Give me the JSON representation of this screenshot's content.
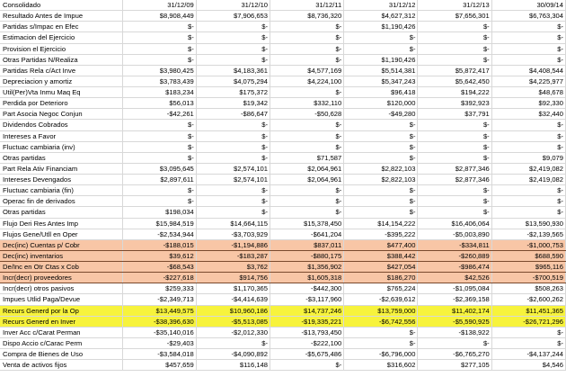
{
  "sheet": {
    "header": [
      "Consolidado",
      "31/12/09",
      "31/12/10",
      "31/12/11",
      "31/12/12",
      "31/12/13",
      "30/09/14"
    ],
    "rows": [
      {
        "label": "Resultado Antes de Impue",
        "values": [
          "$8,908,449",
          "$7,906,653",
          "$8,736,320",
          "$4,627,312",
          "$7,656,301",
          "$6,763,304"
        ],
        "highlight": ""
      },
      {
        "label": "Partidas s/Impac en Efec",
        "values": [
          "$-",
          "$-",
          "$-",
          "$1,190,426",
          "$-",
          "$-"
        ],
        "highlight": ""
      },
      {
        "label": "Estimacion del Ejercicio",
        "values": [
          "$-",
          "$-",
          "$-",
          "$-",
          "$-",
          "$-"
        ],
        "highlight": ""
      },
      {
        "label": "Provision el Ejercicio",
        "values": [
          "$-",
          "$-",
          "$-",
          "$-",
          "$-",
          "$-"
        ],
        "highlight": ""
      },
      {
        "label": "Otras Partidas N/Realiza",
        "values": [
          "$-",
          "$-",
          "$-",
          "$1,190,426",
          "$-",
          "$-"
        ],
        "highlight": ""
      },
      {
        "label": "Partidas Rela c/Act Inve",
        "values": [
          "$3,980,425",
          "$4,183,361",
          "$4,577,169",
          "$5,514,381",
          "$5,872,417",
          "$4,408,544"
        ],
        "highlight": ""
      },
      {
        "label": "Depreciacion y amortiz",
        "values": [
          "$3,783,439",
          "$4,075,294",
          "$4,224,100",
          "$5,347,243",
          "$5,642,450",
          "$4,225,977"
        ],
        "highlight": ""
      },
      {
        "label": "Util(Per)Vta Inmu Maq Eq",
        "values": [
          "$183,234",
          "$175,372",
          "$-",
          "$96,418",
          "$194,222",
          "$48,678"
        ],
        "highlight": ""
      },
      {
        "label": "Perdida por Deterioro",
        "values": [
          "$56,013",
          "$19,342",
          "$332,110",
          "$120,000",
          "$392,923",
          "$92,330"
        ],
        "highlight": ""
      },
      {
        "label": "Part Asocia Negoc Conjun",
        "values": [
          "-$42,261",
          "-$86,647",
          "-$50,628",
          "-$49,280",
          "$37,791",
          "$32,440"
        ],
        "highlight": ""
      },
      {
        "label": "Dividendos Cobrados",
        "values": [
          "$-",
          "$-",
          "$-",
          "$-",
          "$-",
          "$-"
        ],
        "highlight": ""
      },
      {
        "label": "Intereses a Favor",
        "values": [
          "$-",
          "$-",
          "$-",
          "$-",
          "$-",
          "$-"
        ],
        "highlight": ""
      },
      {
        "label": "Fluctuac cambiaria (inv)",
        "values": [
          "$-",
          "$-",
          "$-",
          "$-",
          "$-",
          "$-"
        ],
        "highlight": ""
      },
      {
        "label": "Otras partidas",
        "values": [
          "$-",
          "$-",
          "$71,587",
          "$-",
          "$-",
          "$9,079"
        ],
        "highlight": ""
      },
      {
        "label": "Part Rela Ativ Financiam",
        "values": [
          "$3,095,645",
          "$2,574,101",
          "$2,064,961",
          "$2,822,103",
          "$2,877,346",
          "$2,419,082"
        ],
        "highlight": ""
      },
      {
        "label": "Intereses Devengados",
        "values": [
          "$2,897,611",
          "$2,574,101",
          "$2,064,961",
          "$2,822,103",
          "$2,877,346",
          "$2,419,082"
        ],
        "highlight": ""
      },
      {
        "label": "Fluctuac cambiaria (fin)",
        "values": [
          "$-",
          "$-",
          "$-",
          "$-",
          "$-",
          "$-"
        ],
        "highlight": ""
      },
      {
        "label": "Operac fin de derivados",
        "values": [
          "$-",
          "$-",
          "$-",
          "$-",
          "$-",
          "$-"
        ],
        "highlight": ""
      },
      {
        "label": "Otras partidas",
        "values": [
          "$198,034",
          "$-",
          "$-",
          "$-",
          "$-",
          "$-"
        ],
        "highlight": ""
      },
      {
        "label": "Flujo Deri Res Antes Imp",
        "values": [
          "$15,984,519",
          "$14,664,115",
          "$15,378,450",
          "$14,154,222",
          "$16,406,064",
          "$13,590,930"
        ],
        "highlight": ""
      },
      {
        "label": "Flujos Gene/Utll en Oper",
        "values": [
          "-$2,534,944",
          "-$3,703,929",
          "-$641,204",
          "-$395,222",
          "-$5,003,890",
          "-$2,139,565"
        ],
        "highlight": ""
      },
      {
        "label": "Dec(inc) Cuentas p/ Cobr",
        "values": [
          "-$188,015",
          "-$1,194,886",
          "$837,011",
          "$477,400",
          "-$334,811",
          "-$1,000,753"
        ],
        "highlight": "salmon"
      },
      {
        "label": "Dec(inc) inventarios",
        "values": [
          "$39,612",
          "-$183,287",
          "-$880,175",
          "$388,442",
          "-$260,889",
          "$688,590"
        ],
        "highlight": "salmon"
      },
      {
        "label": "De/Inc en Otr Ctas x Cob",
        "values": [
          "-$68,543",
          "$3,762",
          "$1,356,902",
          "$427,054",
          "-$986,474",
          "$965,116"
        ],
        "highlight": "salmon"
      },
      {
        "label": "Incr(decr) proveedores",
        "values": [
          "-$227,618",
          "$914,756",
          "$1,605,318",
          "$186,270",
          "$42,526",
          "-$700,519"
        ],
        "highlight": "salmon"
      },
      {
        "label": "Incr(decr) otros pasivos",
        "values": [
          "$259,333",
          "$1,170,365",
          "-$442,300",
          "$765,224",
          "-$1,095,084",
          "$508,263"
        ],
        "highlight": ""
      },
      {
        "label": "Impues Utlid Paga/Devue",
        "values": [
          "-$2,349,713",
          "-$4,414,639",
          "-$3,117,960",
          "-$2,639,612",
          "-$2,369,158",
          "-$2,600,262"
        ],
        "highlight": ""
      },
      {
        "label": "Recurs Generd por la Op",
        "values": [
          "$13,449,575",
          "$10,960,186",
          "$14,737,246",
          "$13,759,000",
          "$11,402,174",
          "$11,451,365"
        ],
        "highlight": "yellow"
      },
      {
        "label": "Recurs Generd en Inver",
        "values": [
          "-$38,396,630",
          "-$5,513,085",
          "-$19,335,221",
          "-$6,742,556",
          "-$5,590,925",
          "-$26,721,296"
        ],
        "highlight": "yellow"
      },
      {
        "label": "Inver Acc c/Carat Perman",
        "values": [
          "-$35,140,016",
          "-$2,012,330",
          "-$13,793,450",
          "$-",
          "-$138,922",
          "$-"
        ],
        "highlight": ""
      },
      {
        "label": "Dispo Accio c/Carac Perm",
        "values": [
          "-$29,403",
          "$-",
          "-$222,100",
          "$-",
          "$-",
          "$-"
        ],
        "highlight": ""
      },
      {
        "label": "Compra de Bienes de Uso",
        "values": [
          "-$3,584,018",
          "-$4,090,892",
          "-$5,675,486",
          "-$6,796,000",
          "-$6,765,270",
          "-$4,137,244"
        ],
        "highlight": ""
      },
      {
        "label": "Venta de activos fijos",
        "values": [
          "$457,659",
          "$116,148",
          "$-",
          "$316,602",
          "$277,105",
          "$4,546"
        ],
        "highlight": ""
      }
    ]
  }
}
